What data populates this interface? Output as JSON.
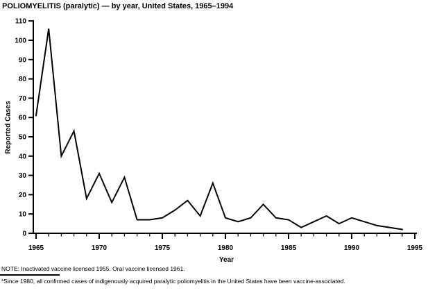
{
  "title": "POLIOMYELITIS (paralytic) — by year, United States, 1965–1994",
  "notes": {
    "note1": "NOTE: Inactivated vaccine licensed 1955. Oral vaccine licensed 1961.",
    "note2": "*Since 1980, all confirmed cases of indigenously acquired paralytic poliomyelitis in the United States have been vaccine-associated."
  },
  "colors": {
    "line": "#000000",
    "axis": "#000000",
    "text": "#000000",
    "background": "#ffffff"
  },
  "chart_data": {
    "type": "line",
    "title": "POLIOMYELITIS (paralytic) — by year, United States, 1965–1994",
    "xlabel": "Year",
    "ylabel": "Reported Cases",
    "x": [
      1965,
      1966,
      1967,
      1968,
      1969,
      1970,
      1971,
      1972,
      1973,
      1974,
      1975,
      1976,
      1977,
      1978,
      1979,
      1980,
      1981,
      1982,
      1983,
      1984,
      1985,
      1986,
      1987,
      1988,
      1989,
      1990,
      1991,
      1992,
      1993,
      1994
    ],
    "values": [
      61,
      106,
      40,
      53,
      18,
      31,
      16,
      29,
      7,
      7,
      8,
      12,
      17,
      9,
      26,
      8,
      6,
      8,
      15,
      8,
      7,
      3,
      6,
      9,
      5,
      8,
      6,
      4,
      3,
      2
    ],
    "xlim": [
      1965,
      1995
    ],
    "ylim": [
      0,
      110
    ],
    "y_ticks": [
      0,
      10,
      20,
      30,
      40,
      50,
      60,
      70,
      80,
      90,
      100,
      110
    ],
    "x_major_ticks": [
      1965,
      1970,
      1975,
      1980,
      1985,
      1990,
      1995
    ],
    "x_minor_tick_interval": 1,
    "grid": false,
    "legend": null,
    "line_color": "#000000"
  }
}
